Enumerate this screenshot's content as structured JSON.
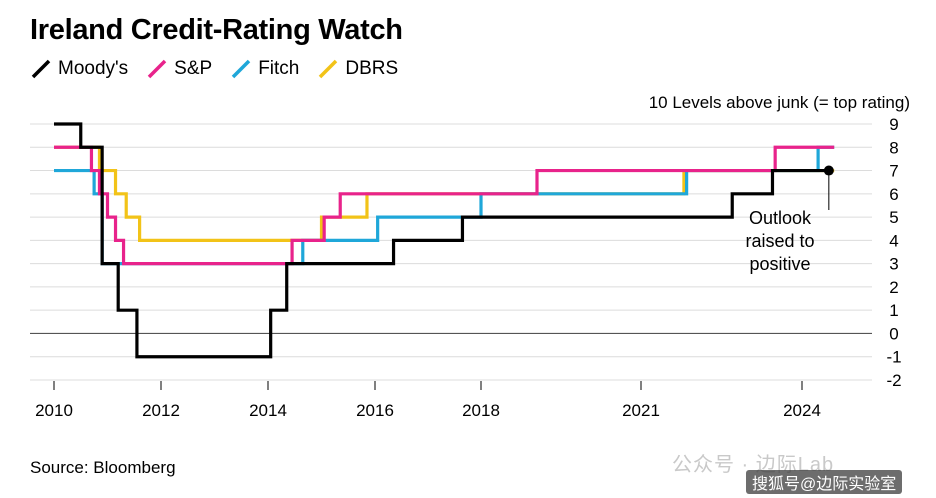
{
  "title": "Ireland Credit-Rating Watch",
  "source": "Source: Bloomberg",
  "watermark": "公众号 · 边际Lab",
  "watermark2": "搜狐号@边际实验室",
  "chart_data": {
    "type": "line",
    "title": "Ireland Credit-Rating Watch",
    "ylabel": "10 Levels above junk (= top rating)",
    "ylim": [
      -2,
      9
    ],
    "xlim": [
      2010,
      2024.6
    ],
    "x_ticks": [
      2010,
      2012,
      2014,
      2016,
      2018,
      2021,
      2024
    ],
    "x_tick_labels": [
      "2010",
      "2012",
      "2014",
      "2016",
      "2018",
      "2021",
      "2024"
    ],
    "y_ticks": [
      9,
      8,
      7,
      6,
      5,
      4,
      3,
      2,
      1,
      0,
      -1,
      -2
    ],
    "y_tick_labels": [
      "9",
      "8",
      "7",
      "6",
      "5",
      "4",
      "3",
      "2",
      "1",
      "0",
      "-1",
      "-2"
    ],
    "series": [
      {
        "name": "DBRS",
        "color": "#f2c318",
        "steps": [
          [
            2010,
            8
          ],
          [
            2010.85,
            7
          ],
          [
            2011.15,
            6
          ],
          [
            2011.35,
            5
          ],
          [
            2011.6,
            4
          ],
          [
            2014.55,
            4
          ],
          [
            2015.0,
            5
          ],
          [
            2015.35,
            5
          ],
          [
            2015.85,
            6
          ],
          [
            2021.75,
            6
          ],
          [
            2021.8,
            7
          ],
          [
            2024.6,
            7
          ]
        ]
      },
      {
        "name": "Fitch",
        "color": "#1fa7d9",
        "steps": [
          [
            2010,
            7
          ],
          [
            2010.6,
            7
          ],
          [
            2010.75,
            6
          ],
          [
            2010.9,
            3
          ],
          [
            2014.55,
            3
          ],
          [
            2014.65,
            4
          ],
          [
            2015.25,
            4
          ],
          [
            2015.45,
            4
          ],
          [
            2016.05,
            5
          ],
          [
            2017.8,
            5
          ],
          [
            2018.0,
            6
          ],
          [
            2021.8,
            6
          ],
          [
            2021.85,
            7
          ],
          [
            2024.2,
            7
          ],
          [
            2024.3,
            8
          ],
          [
            2024.6,
            8
          ]
        ]
      },
      {
        "name": "S&P",
        "color": "#e8238b",
        "steps": [
          [
            2010,
            8
          ],
          [
            2010.7,
            7
          ],
          [
            2010.85,
            6
          ],
          [
            2011.0,
            5
          ],
          [
            2011.15,
            4
          ],
          [
            2011.3,
            3
          ],
          [
            2014.35,
            3
          ],
          [
            2014.45,
            4
          ],
          [
            2014.95,
            4
          ],
          [
            2015.05,
            5
          ],
          [
            2015.35,
            6
          ],
          [
            2017.85,
            6
          ],
          [
            2018.95,
            6
          ],
          [
            2019.05,
            7
          ],
          [
            2023.4,
            7
          ],
          [
            2023.5,
            8
          ],
          [
            2024.6,
            8
          ]
        ]
      },
      {
        "name": "Moody's",
        "color": "#000000",
        "steps": [
          [
            2010,
            9
          ],
          [
            2010.45,
            9
          ],
          [
            2010.5,
            8
          ],
          [
            2010.85,
            8
          ],
          [
            2010.9,
            3
          ],
          [
            2011.1,
            3
          ],
          [
            2011.2,
            1
          ],
          [
            2011.45,
            1
          ],
          [
            2011.55,
            -1
          ],
          [
            2013.95,
            -1
          ],
          [
            2014.05,
            1
          ],
          [
            2014.25,
            1
          ],
          [
            2014.35,
            3
          ],
          [
            2016.25,
            3
          ],
          [
            2016.35,
            4
          ],
          [
            2017.55,
            4
          ],
          [
            2017.65,
            5
          ],
          [
            2022.6,
            5
          ],
          [
            2022.7,
            6
          ],
          [
            2023.35,
            6
          ],
          [
            2023.45,
            7
          ],
          [
            2024.5,
            7
          ]
        ]
      }
    ],
    "endpoint_marker": {
      "series": "Moody's",
      "x": 2024.5,
      "y": 7
    },
    "annotation": [
      "Outlook",
      "raised to",
      "positive"
    ]
  }
}
